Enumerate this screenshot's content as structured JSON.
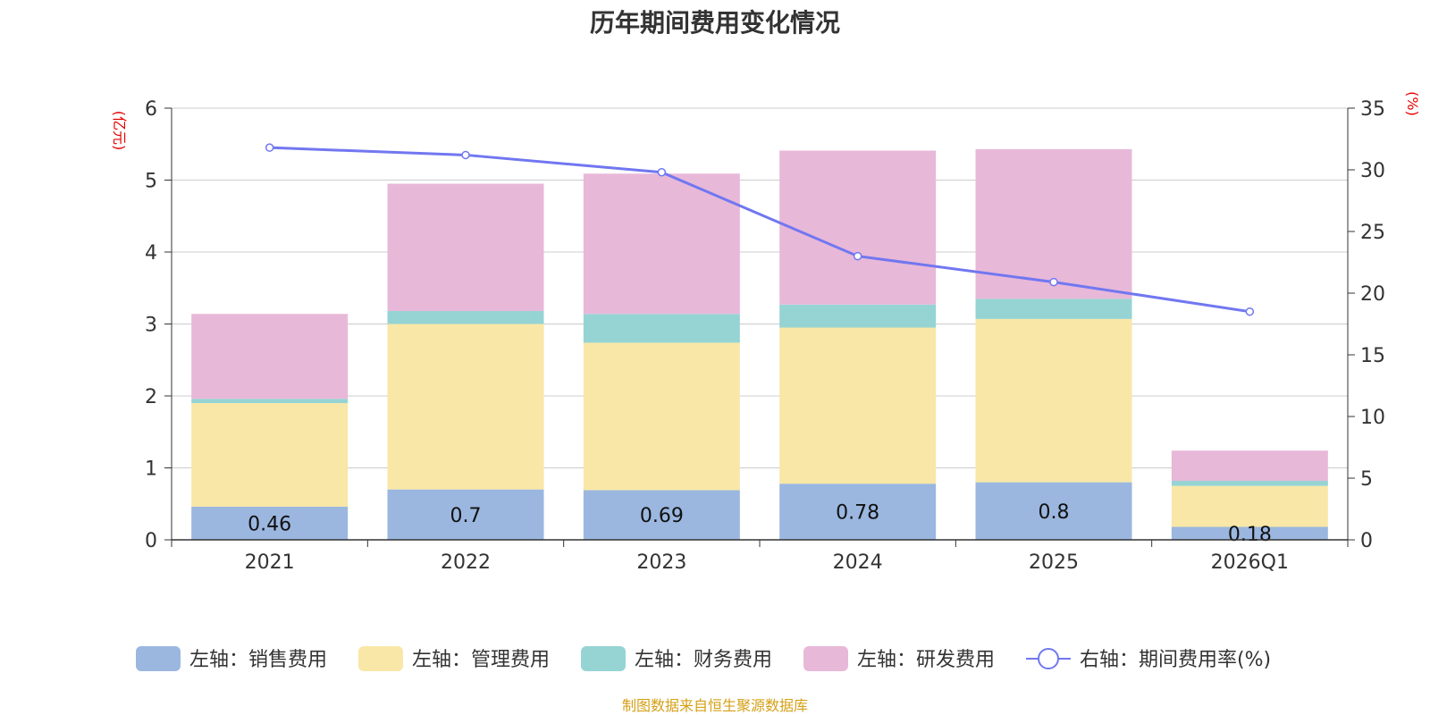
{
  "chart_data": {
    "type": "bar",
    "stacked": true,
    "title": "历年期间费用变化情况",
    "left_axis_label": "(亿元)",
    "right_axis_label": "(%)",
    "categories": [
      "2021",
      "2022",
      "2023",
      "2024",
      "2025",
      "2026Q1"
    ],
    "ylim_left": [
      0,
      6
    ],
    "yticks_left": [
      0,
      1,
      2,
      3,
      4,
      5,
      6
    ],
    "ylim_right": [
      0,
      35
    ],
    "yticks_right": [
      0,
      5,
      10,
      15,
      20,
      25,
      30,
      35
    ],
    "grid": true,
    "series": [
      {
        "name": "左轴：销售费用",
        "axis": "left",
        "kind": "bar",
        "color": "#9bb7e0",
        "values": [
          0.46,
          0.7,
          0.69,
          0.78,
          0.8,
          0.18
        ],
        "labels": [
          "0.46",
          "0.7",
          "0.69",
          "0.78",
          "0.8",
          "0.18"
        ]
      },
      {
        "name": "左轴：管理费用",
        "axis": "left",
        "kind": "bar",
        "color": "#f8e7a7",
        "values": [
          1.44,
          2.3,
          2.05,
          2.17,
          2.27,
          0.57
        ]
      },
      {
        "name": "左轴：财务费用",
        "axis": "left",
        "kind": "bar",
        "color": "#96d4d4",
        "values": [
          0.06,
          0.18,
          0.4,
          0.32,
          0.28,
          0.07
        ]
      },
      {
        "name": "左轴：研发费用",
        "axis": "left",
        "kind": "bar",
        "color": "#e8b8d9",
        "values": [
          1.18,
          1.77,
          1.95,
          2.14,
          2.08,
          0.42
        ]
      },
      {
        "name": "右轴：期间费用率(%)",
        "axis": "right",
        "kind": "line",
        "color": "#7177f0",
        "values": [
          31.8,
          31.2,
          29.8,
          23.0,
          20.9,
          18.5
        ]
      }
    ]
  },
  "source": "制图数据来自恒生聚源数据库"
}
